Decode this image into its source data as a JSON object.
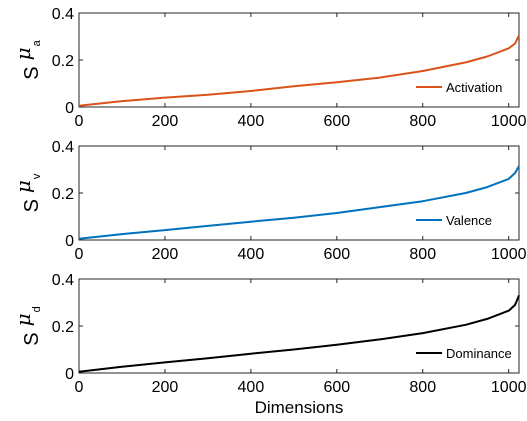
{
  "chart_data": [
    {
      "type": "line",
      "ylabel": {
        "main": "S",
        "symbol": "μ",
        "subscript": "a"
      },
      "xlim": [
        0,
        1024
      ],
      "ylim": [
        0,
        0.4
      ],
      "xticks": [
        0,
        200,
        400,
        600,
        800,
        1000
      ],
      "yticks": [
        0,
        0.2,
        0.4
      ],
      "xlabel": "",
      "legend_position": "right, lower",
      "series": [
        {
          "name": "Activation",
          "color": "#D95319",
          "x": [
            0,
            100,
            200,
            300,
            400,
            500,
            600,
            700,
            800,
            900,
            950,
            1000,
            1015,
            1024
          ],
          "y": [
            0.005,
            0.025,
            0.04,
            0.052,
            0.068,
            0.088,
            0.105,
            0.125,
            0.153,
            0.19,
            0.215,
            0.25,
            0.27,
            0.305
          ]
        }
      ]
    },
    {
      "type": "line",
      "ylabel": {
        "main": "S",
        "symbol": "μ",
        "subscript": "v"
      },
      "xlim": [
        0,
        1024
      ],
      "ylim": [
        0,
        0.4
      ],
      "xticks": [
        0,
        200,
        400,
        600,
        800,
        1000
      ],
      "yticks": [
        0,
        0.2,
        0.4
      ],
      "xlabel": "",
      "legend_position": "right, lower",
      "series": [
        {
          "name": "Valence",
          "color": "#0072BD",
          "x": [
            0,
            100,
            200,
            300,
            400,
            500,
            600,
            700,
            800,
            900,
            950,
            1000,
            1015,
            1024
          ],
          "y": [
            0.005,
            0.025,
            0.042,
            0.06,
            0.078,
            0.095,
            0.115,
            0.14,
            0.165,
            0.2,
            0.225,
            0.26,
            0.285,
            0.315
          ]
        }
      ]
    },
    {
      "type": "line",
      "ylabel": {
        "main": "S",
        "symbol": "μ",
        "subscript": "d"
      },
      "xlim": [
        0,
        1024
      ],
      "ylim": [
        0,
        0.4
      ],
      "xticks": [
        0,
        200,
        400,
        600,
        800,
        1000
      ],
      "yticks": [
        0,
        0.2,
        0.4
      ],
      "xlabel": "Dimensions",
      "legend_position": "right, lower",
      "series": [
        {
          "name": "Dominance",
          "color": "#000000",
          "x": [
            0,
            100,
            200,
            300,
            400,
            500,
            600,
            700,
            800,
            900,
            950,
            1000,
            1015,
            1024
          ],
          "y": [
            0.005,
            0.027,
            0.045,
            0.063,
            0.082,
            0.1,
            0.12,
            0.143,
            0.17,
            0.205,
            0.23,
            0.265,
            0.29,
            0.33
          ]
        }
      ]
    }
  ]
}
